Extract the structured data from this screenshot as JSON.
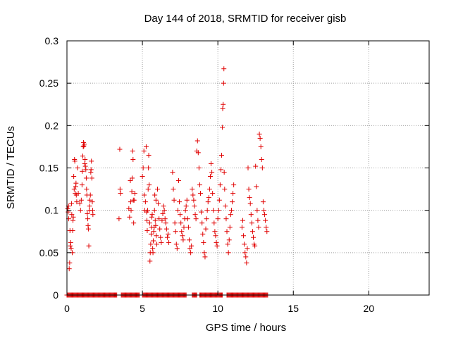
{
  "chart_data": {
    "type": "scatter",
    "title": "Day 144 of 2018, SRMTID for receiver gisb",
    "xlabel": "GPS time / hours",
    "ylabel": "SRMTID / TECUs",
    "xlim": [
      0,
      24
    ],
    "ylim": [
      0,
      0.3
    ],
    "xticks": [
      0,
      5,
      10,
      15,
      20
    ],
    "xtick_labels": [
      "0",
      "5",
      "10",
      "15",
      "20"
    ],
    "yticks": [
      0,
      0.05,
      0.1,
      0.15,
      0.2,
      0.25,
      0.3
    ],
    "ytick_labels": [
      "0",
      "0.05",
      "0.1",
      "0.15",
      "0.2",
      "0.25",
      "0.3"
    ],
    "grid": true,
    "marker": "+",
    "colors": {
      "series": "#e00000",
      "grid": "#a0a0a0",
      "axis": "#000000"
    },
    "series": [
      {
        "name": "SRMTID",
        "points": [
          [
            0.05,
            0.102
          ],
          [
            0.08,
            0.098
          ],
          [
            0.1,
            0.105
          ],
          [
            0.12,
            0.09
          ],
          [
            0.15,
            0.031
          ],
          [
            0.18,
            0.038
          ],
          [
            0.2,
            0.076
          ],
          [
            0.22,
            0.058
          ],
          [
            0.25,
            0.062
          ],
          [
            0.28,
            0.055
          ],
          [
            0.3,
            0.108
          ],
          [
            0.32,
            0.095
          ],
          [
            0.35,
            0.05
          ],
          [
            0.38,
            0.076
          ],
          [
            0.4,
            0.088
          ],
          [
            0.42,
            0.092
          ],
          [
            0.45,
            0.14
          ],
          [
            0.48,
            0.125
          ],
          [
            0.5,
            0.16
          ],
          [
            0.52,
            0.158
          ],
          [
            0.55,
            0.12
          ],
          [
            0.58,
            0.128
          ],
          [
            0.6,
            0.132
          ],
          [
            0.62,
            0.118
          ],
          [
            0.65,
            0.11
          ],
          [
            0.7,
            0.15
          ],
          [
            0.75,
            0.12
          ],
          [
            0.85,
            0.108
          ],
          [
            0.9,
            0.1
          ],
          [
            0.95,
            0.112
          ],
          [
            1.0,
            0.13
          ],
          [
            1.02,
            0.146
          ],
          [
            1.05,
            0.164
          ],
          [
            1.08,
            0.175
          ],
          [
            1.1,
            0.18
          ],
          [
            1.12,
            0.176
          ],
          [
            1.15,
            0.178
          ],
          [
            1.18,
            0.155
          ],
          [
            1.2,
            0.16
          ],
          [
            1.22,
            0.152
          ],
          [
            1.25,
            0.148
          ],
          [
            1.28,
            0.138
          ],
          [
            1.3,
            0.125
          ],
          [
            1.32,
            0.118
          ],
          [
            1.35,
            0.096
          ],
          [
            1.38,
            0.09
          ],
          [
            1.4,
            0.082
          ],
          [
            1.42,
            0.078
          ],
          [
            1.45,
            0.058
          ],
          [
            1.48,
            0.1
          ],
          [
            1.5,
            0.105
          ],
          [
            1.52,
            0.112
          ],
          [
            1.55,
            0.118
          ],
          [
            1.58,
            0.145
          ],
          [
            1.6,
            0.148
          ],
          [
            1.62,
            0.158
          ],
          [
            1.65,
            0.138
          ],
          [
            1.68,
            0.11
          ],
          [
            1.7,
            0.1
          ],
          [
            1.72,
            0.095
          ],
          [
            3.45,
            0.09
          ],
          [
            3.5,
            0.172
          ],
          [
            3.52,
            0.125
          ],
          [
            3.55,
            0.12
          ],
          [
            4.1,
            0.102
          ],
          [
            4.15,
            0.092
          ],
          [
            4.2,
            0.135
          ],
          [
            4.22,
            0.11
          ],
          [
            4.25,
            0.1
          ],
          [
            4.3,
            0.122
          ],
          [
            4.32,
            0.138
          ],
          [
            4.35,
            0.17
          ],
          [
            4.38,
            0.16
          ],
          [
            4.4,
            0.112
          ],
          [
            4.42,
            0.085
          ],
          [
            4.45,
            0.112
          ],
          [
            4.5,
            0.12
          ],
          [
            5.0,
            0.14
          ],
          [
            5.05,
            0.15
          ],
          [
            5.1,
            0.17
          ],
          [
            5.12,
            0.118
          ],
          [
            5.15,
            0.1
          ],
          [
            5.2,
            0.11
          ],
          [
            5.25,
            0.175
          ],
          [
            5.28,
            0.098
          ],
          [
            5.3,
            0.088
          ],
          [
            5.32,
            0.076
          ],
          [
            5.35,
            0.1
          ],
          [
            5.38,
            0.125
          ],
          [
            5.4,
            0.15
          ],
          [
            5.42,
            0.165
          ],
          [
            5.45,
            0.13
          ],
          [
            5.48,
            0.085
          ],
          [
            5.5,
            0.04
          ],
          [
            5.52,
            0.05
          ],
          [
            5.55,
            0.06
          ],
          [
            5.58,
            0.072
          ],
          [
            5.6,
            0.08
          ],
          [
            5.62,
            0.092
          ],
          [
            5.65,
            0.095
          ],
          [
            5.68,
            0.055
          ],
          [
            5.7,
            0.05
          ],
          [
            5.72,
            0.064
          ],
          [
            5.75,
            0.075
          ],
          [
            5.78,
            0.08
          ],
          [
            5.8,
            0.1
          ],
          [
            5.82,
            0.118
          ],
          [
            5.85,
            0.088
          ],
          [
            5.88,
            0.082
          ],
          [
            5.9,
            0.112
          ],
          [
            5.92,
            0.07
          ],
          [
            5.95,
            0.06
          ],
          [
            6.0,
            0.125
          ],
          [
            6.05,
            0.108
          ],
          [
            6.1,
            0.09
          ],
          [
            6.15,
            0.078
          ],
          [
            6.2,
            0.068
          ],
          [
            6.25,
            0.062
          ],
          [
            6.3,
            0.088
          ],
          [
            6.35,
            0.096
          ],
          [
            6.4,
            0.105
          ],
          [
            6.45,
            0.1
          ],
          [
            6.5,
            0.09
          ],
          [
            6.55,
            0.085
          ],
          [
            6.6,
            0.078
          ],
          [
            6.65,
            0.068
          ],
          [
            6.7,
            0.072
          ],
          [
            6.75,
            0.062
          ],
          [
            7.0,
            0.145
          ],
          [
            7.05,
            0.125
          ],
          [
            7.1,
            0.112
          ],
          [
            7.15,
            0.085
          ],
          [
            7.2,
            0.075
          ],
          [
            7.25,
            0.06
          ],
          [
            7.3,
            0.055
          ],
          [
            7.35,
            0.1
          ],
          [
            7.4,
            0.135
          ],
          [
            7.45,
            0.11
          ],
          [
            7.5,
            0.095
          ],
          [
            7.55,
            0.085
          ],
          [
            7.6,
            0.075
          ],
          [
            7.65,
            0.07
          ],
          [
            7.7,
            0.065
          ],
          [
            7.75,
            0.08
          ],
          [
            7.8,
            0.09
          ],
          [
            7.85,
            0.1
          ],
          [
            7.9,
            0.105
          ],
          [
            7.95,
            0.112
          ],
          [
            8.0,
            0.09
          ],
          [
            8.05,
            0.08
          ],
          [
            8.1,
            0.065
          ],
          [
            8.15,
            0.055
          ],
          [
            8.2,
            0.05
          ],
          [
            8.25,
            0.058
          ],
          [
            8.3,
            0.125
          ],
          [
            8.35,
            0.118
          ],
          [
            8.4,
            0.112
          ],
          [
            8.45,
            0.105
          ],
          [
            8.5,
            0.095
          ],
          [
            8.55,
            0.09
          ],
          [
            8.6,
            0.17
          ],
          [
            8.65,
            0.182
          ],
          [
            8.7,
            0.168
          ],
          [
            8.75,
            0.15
          ],
          [
            8.8,
            0.13
          ],
          [
            8.85,
            0.12
          ],
          [
            8.9,
            0.098
          ],
          [
            8.95,
            0.085
          ],
          [
            9.0,
            0.072
          ],
          [
            9.05,
            0.062
          ],
          [
            9.1,
            0.05
          ],
          [
            9.15,
            0.045
          ],
          [
            9.2,
            0.078
          ],
          [
            9.25,
            0.09
          ],
          [
            9.3,
            0.1
          ],
          [
            9.35,
            0.11
          ],
          [
            9.4,
            0.115
          ],
          [
            9.45,
            0.125
          ],
          [
            9.5,
            0.14
          ],
          [
            9.55,
            0.155
          ],
          [
            9.6,
            0.145
          ],
          [
            9.65,
            0.12
          ],
          [
            9.7,
            0.1
          ],
          [
            9.75,
            0.085
          ],
          [
            9.8,
            0.075
          ],
          [
            9.85,
            0.07
          ],
          [
            9.9,
            0.062
          ],
          [
            9.95,
            0.058
          ],
          [
            10.0,
            0.09
          ],
          [
            10.05,
            0.1
          ],
          [
            10.1,
            0.112
          ],
          [
            10.15,
            0.13
          ],
          [
            10.2,
            0.148
          ],
          [
            10.25,
            0.165
          ],
          [
            10.3,
            0.198
          ],
          [
            10.32,
            0.22
          ],
          [
            10.35,
            0.225
          ],
          [
            10.38,
            0.25
          ],
          [
            10.4,
            0.267
          ],
          [
            10.42,
            0.145
          ],
          [
            10.45,
            0.125
          ],
          [
            10.5,
            0.105
          ],
          [
            10.55,
            0.09
          ],
          [
            10.6,
            0.075
          ],
          [
            10.65,
            0.06
          ],
          [
            10.7,
            0.05
          ],
          [
            10.75,
            0.065
          ],
          [
            10.8,
            0.08
          ],
          [
            10.85,
            0.095
          ],
          [
            10.9,
            0.1
          ],
          [
            10.95,
            0.11
          ],
          [
            11.0,
            0.12
          ],
          [
            11.05,
            0.13
          ],
          [
            11.6,
            0.08
          ],
          [
            11.65,
            0.088
          ],
          [
            11.7,
            0.07
          ],
          [
            11.75,
            0.06
          ],
          [
            11.8,
            0.05
          ],
          [
            11.85,
            0.045
          ],
          [
            11.9,
            0.038
          ],
          [
            11.95,
            0.055
          ],
          [
            12.0,
            0.15
          ],
          [
            12.05,
            0.125
          ],
          [
            12.1,
            0.115
          ],
          [
            12.15,
            0.108
          ],
          [
            12.2,
            0.095
          ],
          [
            12.25,
            0.085
          ],
          [
            12.3,
            0.075
          ],
          [
            12.35,
            0.068
          ],
          [
            12.4,
            0.06
          ],
          [
            12.45,
            0.058
          ],
          [
            12.5,
            0.152
          ],
          [
            12.55,
            0.128
          ],
          [
            12.6,
            0.1
          ],
          [
            12.65,
            0.088
          ],
          [
            12.7,
            0.08
          ],
          [
            12.75,
            0.19
          ],
          [
            12.8,
            0.185
          ],
          [
            12.85,
            0.175
          ],
          [
            12.9,
            0.16
          ],
          [
            12.95,
            0.15
          ],
          [
            13.0,
            0.11
          ],
          [
            13.05,
            0.1
          ],
          [
            13.1,
            0.095
          ],
          [
            13.15,
            0.088
          ],
          [
            13.2,
            0.08
          ],
          [
            13.25,
            0.075
          ]
        ],
        "zero_ranges": [
          [
            0,
            3.3
          ],
          [
            3.6,
            4.8
          ],
          [
            5.0,
            7.9
          ],
          [
            8.3,
            8.6
          ],
          [
            8.8,
            10.3
          ],
          [
            10.6,
            13.3
          ]
        ]
      }
    ]
  }
}
